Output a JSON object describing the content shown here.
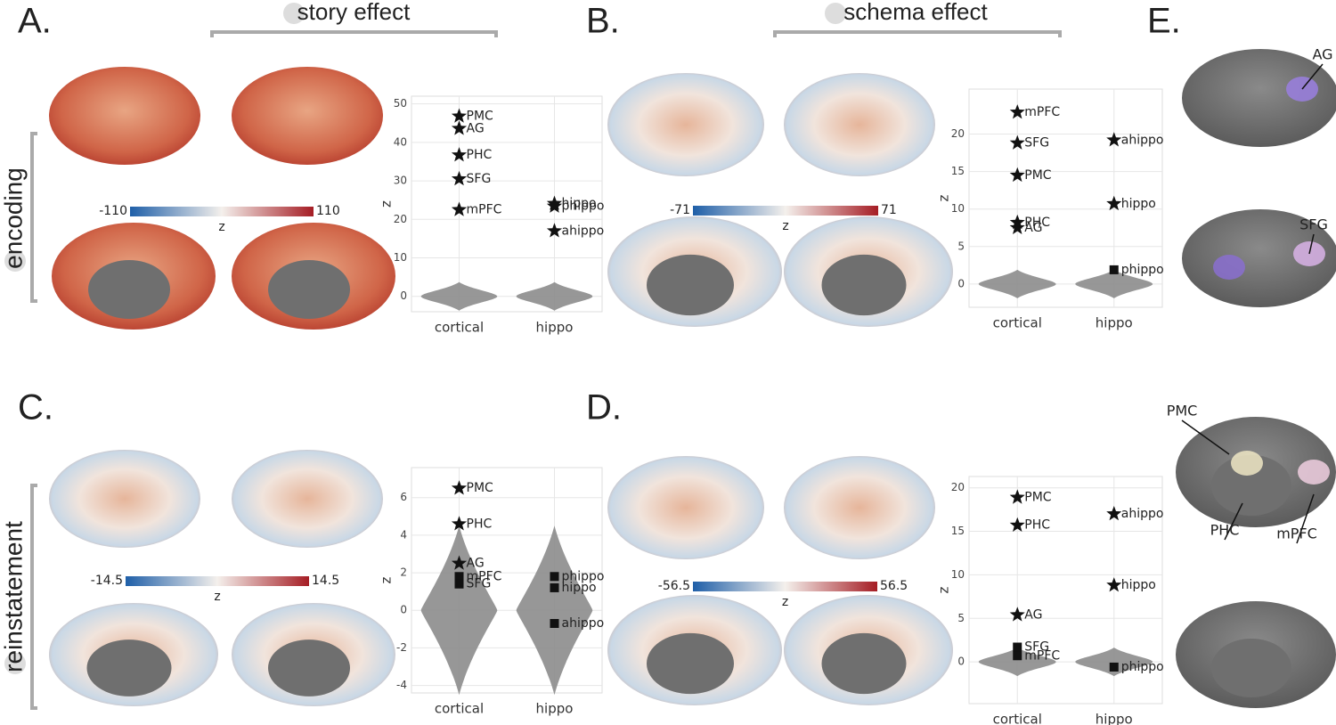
{
  "panels": [
    "A.",
    "B.",
    "C.",
    "D.",
    "E."
  ],
  "headers": [
    "story effect",
    "schema effect"
  ],
  "rows": [
    "encoding",
    "reinstatement"
  ],
  "colorbars": [
    {
      "min": -110,
      "max": 110,
      "label": "z"
    },
    {
      "min": -71,
      "max": 71,
      "label": "z"
    },
    {
      "min": -14.5,
      "max": 14.5,
      "label": "z"
    },
    {
      "min": -56.5,
      "max": 56.5,
      "label": "z"
    }
  ],
  "regions": [
    "AG",
    "SFG",
    "PMC",
    "PHC",
    "mPFC"
  ],
  "chart_data": [
    {
      "type": "scatter",
      "ylabel": "z",
      "categories": [
        "cortical",
        "hippo"
      ],
      "ylim": [
        -4,
        52
      ],
      "yticks": [
        0,
        10,
        20,
        30,
        40,
        50
      ],
      "grid": true,
      "points": [
        {
          "label": "PMC",
          "group": "cortical",
          "value": 46.8,
          "marker": "star"
        },
        {
          "label": "AG",
          "group": "cortical",
          "value": 43.6,
          "marker": "star"
        },
        {
          "label": "PHC",
          "group": "cortical",
          "value": 36.7,
          "marker": "star"
        },
        {
          "label": "SFG",
          "group": "cortical",
          "value": 30.5,
          "marker": "star"
        },
        {
          "label": "mPFC",
          "group": "cortical",
          "value": 22.5,
          "marker": "star"
        },
        {
          "label": "hippo",
          "group": "hippo",
          "value": 24.1,
          "marker": "star"
        },
        {
          "label": "ahippo",
          "group": "hippo",
          "value": 17,
          "marker": "star"
        },
        {
          "label": "phippo",
          "group": "hippo",
          "value": 23.4,
          "marker": "star"
        }
      ]
    },
    {
      "type": "scatter",
      "ylabel": "z",
      "categories": [
        "cortical",
        "hippo"
      ],
      "ylim": [
        -3.1,
        26
      ],
      "yticks": [
        0,
        5,
        10,
        15,
        20
      ],
      "grid": true,
      "points": [
        {
          "label": "mPFC",
          "group": "cortical",
          "value": 22.9,
          "marker": "star"
        },
        {
          "label": "SFG",
          "group": "cortical",
          "value": 18.8,
          "marker": "star"
        },
        {
          "label": "PMC",
          "group": "cortical",
          "value": 14.5,
          "marker": "star"
        },
        {
          "label": "PHC",
          "group": "cortical",
          "value": 8.2,
          "marker": "star"
        },
        {
          "label": "AG",
          "group": "cortical",
          "value": 7.5,
          "marker": "star"
        },
        {
          "label": "ahippo",
          "group": "hippo",
          "value": 19.2,
          "marker": "star"
        },
        {
          "label": "hippo",
          "group": "hippo",
          "value": 10.7,
          "marker": "star"
        },
        {
          "label": "phippo",
          "group": "hippo",
          "value": 1.9,
          "marker": "square"
        }
      ]
    },
    {
      "type": "scatter",
      "ylabel": "z",
      "categories": [
        "cortical",
        "hippo"
      ],
      "ylim": [
        -4.4,
        7.6
      ],
      "yticks": [
        -4,
        -2,
        0,
        2,
        4,
        6
      ],
      "grid": true,
      "points": [
        {
          "label": "PMC",
          "group": "cortical",
          "value": 6.5,
          "marker": "star"
        },
        {
          "label": "PHC",
          "group": "cortical",
          "value": 4.6,
          "marker": "star"
        },
        {
          "label": "AG",
          "group": "cortical",
          "value": 2.5,
          "marker": "star"
        },
        {
          "label": "mPFC",
          "group": "cortical",
          "value": 1.8,
          "marker": "square"
        },
        {
          "label": "SFG",
          "group": "cortical",
          "value": 1.4,
          "marker": "square"
        },
        {
          "label": "phippo",
          "group": "hippo",
          "value": 1.8,
          "marker": "square"
        },
        {
          "label": "hippo",
          "group": "hippo",
          "value": 1.2,
          "marker": "square"
        },
        {
          "label": "ahippo",
          "group": "hippo",
          "value": -0.7,
          "marker": "square"
        }
      ]
    },
    {
      "type": "scatter",
      "ylabel": "z",
      "categories": [
        "cortical",
        "hippo"
      ],
      "ylim": [
        -4.8,
        21.3
      ],
      "yticks": [
        0,
        5,
        10,
        15,
        20
      ],
      "grid": true,
      "points": [
        {
          "label": "PMC",
          "group": "cortical",
          "value": 18.9,
          "marker": "star"
        },
        {
          "label": "PHC",
          "group": "cortical",
          "value": 15.7,
          "marker": "star"
        },
        {
          "label": "AG",
          "group": "cortical",
          "value": 5.4,
          "marker": "star"
        },
        {
          "label": "SFG",
          "group": "cortical",
          "value": 1.7,
          "marker": "square"
        },
        {
          "label": "mPFC",
          "group": "cortical",
          "value": 0.7,
          "marker": "square"
        },
        {
          "label": "ahippo",
          "group": "hippo",
          "value": 17,
          "marker": "star"
        },
        {
          "label": "hippo",
          "group": "hippo",
          "value": 8.8,
          "marker": "star"
        },
        {
          "label": "phippo",
          "group": "hippo",
          "value": -0.6,
          "marker": "square"
        }
      ]
    }
  ]
}
